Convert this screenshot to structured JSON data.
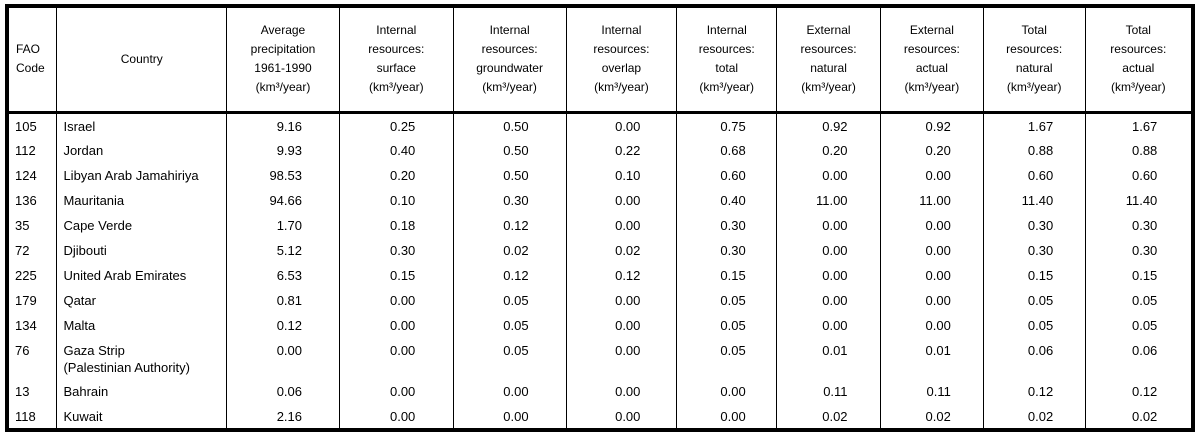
{
  "page": {
    "background_color": "#ffffff",
    "text_color": "#000000",
    "border_color": "#000000"
  },
  "table": {
    "columns": [
      {
        "id": "fao-code",
        "lines": [
          "FAO",
          "Code"
        ]
      },
      {
        "id": "country",
        "lines": [
          "Country"
        ]
      },
      {
        "id": "avg-precipitation",
        "lines": [
          "Average",
          "precipitation",
          "1961-1990",
          "(km³/year)"
        ]
      },
      {
        "id": "internal-surface",
        "lines": [
          "Internal",
          "resources:",
          "surface",
          "(km³/year)"
        ]
      },
      {
        "id": "internal-groundwater",
        "lines": [
          "Internal",
          "resources:",
          "groundwater",
          "(km³/year)"
        ]
      },
      {
        "id": "internal-overlap",
        "lines": [
          "Internal",
          "resources:",
          "overlap",
          "(km³/year)"
        ]
      },
      {
        "id": "internal-total",
        "lines": [
          "Internal",
          "resources:",
          "total",
          "(km³/year)"
        ]
      },
      {
        "id": "external-natural",
        "lines": [
          "External",
          "resources:",
          "natural",
          "(km³/year)"
        ]
      },
      {
        "id": "external-actual",
        "lines": [
          "External",
          "resources:",
          "actual",
          "(km³/year)"
        ]
      },
      {
        "id": "total-natural",
        "lines": [
          "Total",
          "resources:",
          "natural",
          "(km³/year)"
        ]
      },
      {
        "id": "total-actual",
        "lines": [
          "Total",
          "resources:",
          "actual",
          "(km³/year)"
        ]
      }
    ],
    "rows": [
      {
        "cells": [
          "105",
          "Israel",
          "9.16",
          "0.25",
          "0.50",
          "0.00",
          "0.75",
          "0.92",
          "0.92",
          "1.67",
          "1.67"
        ]
      },
      {
        "cells": [
          "112",
          "Jordan",
          "9.93",
          "0.40",
          "0.50",
          "0.22",
          "0.68",
          "0.20",
          "0.20",
          "0.88",
          "0.88"
        ]
      },
      {
        "cells": [
          "124",
          "Libyan Arab Jamahiriya",
          "98.53",
          "0.20",
          "0.50",
          "0.10",
          "0.60",
          "0.00",
          "0.00",
          "0.60",
          "0.60"
        ]
      },
      {
        "cells": [
          "136",
          "Mauritania",
          "94.66",
          "0.10",
          "0.30",
          "0.00",
          "0.40",
          "11.00",
          "11.00",
          "11.40",
          "11.40"
        ]
      },
      {
        "cells": [
          "35",
          "Cape Verde",
          "1.70",
          "0.18",
          "0.12",
          "0.00",
          "0.30",
          "0.00",
          "0.00",
          "0.30",
          "0.30"
        ]
      },
      {
        "cells": [
          "72",
          "Djibouti",
          "5.12",
          "0.30",
          "0.02",
          "0.02",
          "0.30",
          "0.00",
          "0.00",
          "0.30",
          "0.30"
        ]
      },
      {
        "cells": [
          "225",
          "United Arab Emirates",
          "6.53",
          "0.15",
          "0.12",
          "0.12",
          "0.15",
          "0.00",
          "0.00",
          "0.15",
          "0.15"
        ]
      },
      {
        "cells": [
          "179",
          "Qatar",
          "0.81",
          "0.00",
          "0.05",
          "0.00",
          "0.05",
          "0.00",
          "0.00",
          "0.05",
          "0.05"
        ]
      },
      {
        "cells": [
          "134",
          "Malta",
          "0.12",
          "0.00",
          "0.05",
          "0.00",
          "0.05",
          "0.00",
          "0.00",
          "0.05",
          "0.05"
        ]
      },
      {
        "cells": [
          "76",
          "Gaza Strip\n(Palestinian Authority)",
          "0.00",
          "0.00",
          "0.05",
          "0.00",
          "0.05",
          "0.01",
          "0.01",
          "0.06",
          "0.06"
        ]
      },
      {
        "cells": [
          "13",
          "Bahrain",
          "0.06",
          "0.00",
          "0.00",
          "0.00",
          "0.00",
          "0.11",
          "0.11",
          "0.12",
          "0.12"
        ]
      },
      {
        "cells": [
          "118",
          "Kuwait",
          "2.16",
          "0.00",
          "0.00",
          "0.00",
          "0.00",
          "0.02",
          "0.02",
          "0.02",
          "0.02"
        ]
      }
    ]
  }
}
